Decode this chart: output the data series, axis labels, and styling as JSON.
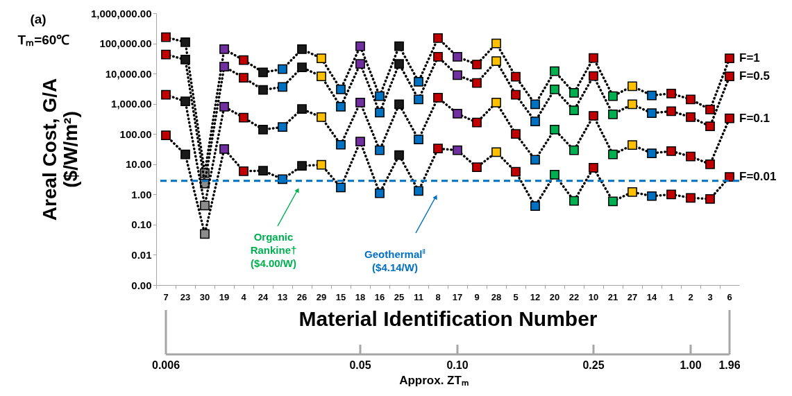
{
  "chart_data": {
    "type": "line",
    "xlabel": "Material Identification Number",
    "ylabel": "Areal Cost, G/A\n($/W/m²)",
    "x2label": "Approx. ZTₘ",
    "categories": [
      "7",
      "23",
      "30",
      "19",
      "4",
      "24",
      "13",
      "26",
      "29",
      "15",
      "18",
      "16",
      "25",
      "11",
      "8",
      "17",
      "9",
      "28",
      "5",
      "12",
      "20",
      "22",
      "10",
      "21",
      "27",
      "14",
      "1",
      "2",
      "3",
      "6"
    ],
    "log": true,
    "ylim": [
      0.001,
      1000000
    ],
    "yticks": [
      {
        "value": 0.001,
        "label": "0.00"
      },
      {
        "value": 0.01,
        "label": "0.01"
      },
      {
        "value": 0.1,
        "label": "0.10"
      },
      {
        "value": 1,
        "label": "1.00"
      },
      {
        "value": 10,
        "label": "10.00"
      },
      {
        "value": 100,
        "label": "100.00"
      },
      {
        "value": 1000,
        "label": "1,000.00"
      },
      {
        "value": 10000,
        "label": "10,000.00"
      },
      {
        "value": 100000,
        "label": "100,000.00"
      },
      {
        "value": 1000000,
        "label": "1,000,000.00"
      }
    ],
    "marker": "square",
    "line_style": "dotted",
    "series": [
      {
        "name": "F=1",
        "color": "#000000",
        "colors": [
          "#c00000",
          "#1a1a1a",
          "#8c8c8c",
          "#7030a0",
          "#c00000",
          "#1a1a1a",
          "#0070c0",
          "#1a1a1a",
          "#ffc000",
          "#0070c0",
          "#7030a0",
          "#0070c0",
          "#1a1a1a",
          "#0070c0",
          "#c00000",
          "#7030a0",
          "#c00000",
          "#ffc000",
          "#c00000",
          "#0070c0",
          "#00b050",
          "#00b050",
          "#c00000",
          "#00b050",
          "#ffc000",
          "#0070c0",
          "#c00000",
          "#c00000",
          "#c00000",
          "#c00000"
        ],
        "values": [
          160000,
          110000,
          5.1,
          64000,
          28000,
          11000,
          14000,
          64000,
          32000,
          3000,
          81000,
          1800,
          81000,
          5400,
          150000,
          36000,
          20000,
          100000,
          7900,
          960,
          12000,
          2300,
          33000,
          1800,
          3800,
          1900,
          2200,
          1400,
          650,
          32000
        ]
      },
      {
        "name": "F=0.5",
        "color": "#000000",
        "colors": [
          "#c00000",
          "#1a1a1a",
          "#8c8c8c",
          "#7030a0",
          "#c00000",
          "#1a1a1a",
          "#0070c0",
          "#1a1a1a",
          "#ffc000",
          "#0070c0",
          "#7030a0",
          "#0070c0",
          "#1a1a1a",
          "#0070c0",
          "#c00000",
          "#7030a0",
          "#c00000",
          "#ffc000",
          "#c00000",
          "#0070c0",
          "#00b050",
          "#00b050",
          "#c00000",
          "#00b050",
          "#ffc000",
          "#0070c0",
          "#c00000",
          "#c00000",
          "#c00000",
          "#c00000"
        ],
        "values": [
          43000,
          29000,
          2.3,
          17000,
          7300,
          2900,
          3600,
          16000,
          8100,
          800,
          21000,
          510,
          21000,
          1400,
          36000,
          8900,
          4900,
          26000,
          2000,
          260,
          3000,
          610,
          8300,
          450,
          960,
          490,
          570,
          360,
          180,
          8100
        ]
      },
      {
        "name": "F=0.1",
        "color": "#000000",
        "colors": [
          "#c00000",
          "#1a1a1a",
          "#8c8c8c",
          "#7030a0",
          "#c00000",
          "#1a1a1a",
          "#0070c0",
          "#1a1a1a",
          "#ffc000",
          "#0070c0",
          "#7030a0",
          "#0070c0",
          "#1a1a1a",
          "#0070c0",
          "#c00000",
          "#7030a0",
          "#c00000",
          "#ffc000",
          "#c00000",
          "#0070c0",
          "#00b050",
          "#00b050",
          "#c00000",
          "#00b050",
          "#ffc000",
          "#0070c0",
          "#c00000",
          "#c00000",
          "#c00000",
          "#c00000"
        ],
        "values": [
          2000,
          1200,
          0.43,
          800,
          350,
          140,
          170,
          670,
          360,
          44,
          1100,
          29,
          960,
          66,
          1600,
          470,
          240,
          1100,
          100,
          14,
          140,
          29,
          400,
          21,
          43,
          23,
          27,
          18,
          10,
          330
        ]
      },
      {
        "name": "F=0.01",
        "color": "#000000",
        "colors": [
          "#c00000",
          "#1a1a1a",
          "#8c8c8c",
          "#7030a0",
          "#c00000",
          "#1a1a1a",
          "#0070c0",
          "#1a1a1a",
          "#ffc000",
          "#0070c0",
          "#7030a0",
          "#0070c0",
          "#1a1a1a",
          "#0070c0",
          "#c00000",
          "#7030a0",
          "#c00000",
          "#ffc000",
          "#c00000",
          "#0070c0",
          "#00b050",
          "#00b050",
          "#c00000",
          "#00b050",
          "#ffc000",
          "#0070c0",
          "#c00000",
          "#c00000",
          "#c00000",
          "#c00000"
        ],
        "values": [
          90,
          21,
          0.049,
          32,
          5.9,
          6.1,
          3.2,
          8.8,
          9.6,
          1.7,
          56,
          1.1,
          20,
          1.3,
          33,
          29,
          7.9,
          25,
          5.6,
          0.41,
          4.5,
          0.61,
          7.6,
          0.59,
          1.2,
          0.88,
          1.0,
          0.77,
          0.71,
          3.8
        ]
      }
    ],
    "ref_lines": [
      {
        "axis": "y",
        "value": 2.8,
        "color": "#0070c0",
        "line_style": "dashed"
      }
    ],
    "annotations": [
      "(a)",
      "Tₘ=60℃",
      "Organic\nRankine†\n($4.00/W)",
      "Geothermal$^{‖}$\n($4.14/W)",
      {
        "text": "0.006",
        "x": "7"
      },
      {
        "text": "0.05",
        "x": "18"
      },
      {
        "text": "0.10",
        "x": "17"
      },
      {
        "text": "0.25",
        "x": "10"
      },
      {
        "text": "1.00",
        "x": "2"
      },
      {
        "text": "1.96",
        "x": "6"
      }
    ]
  }
}
